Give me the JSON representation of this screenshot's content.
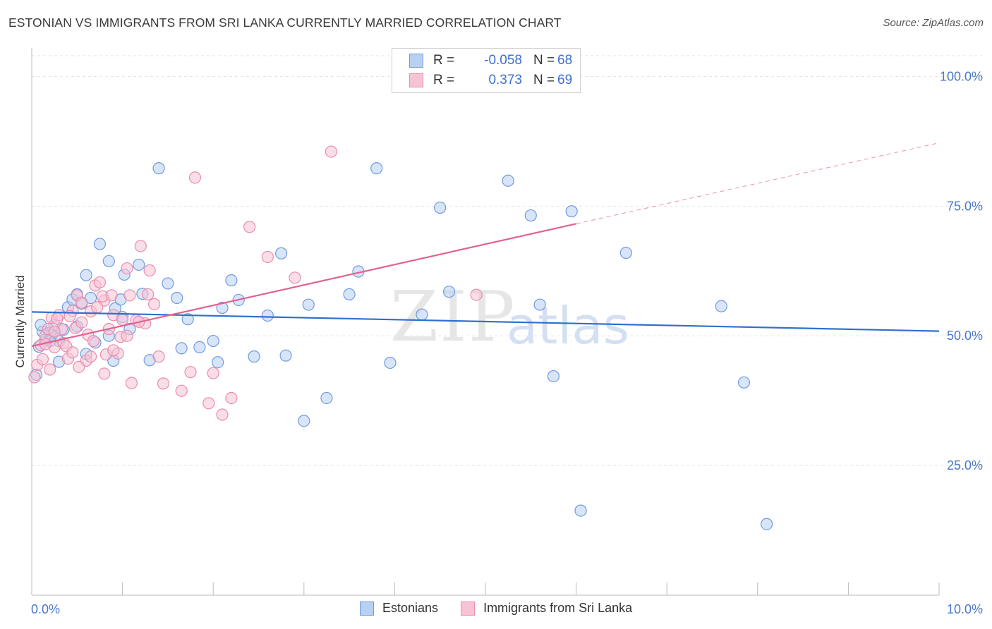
{
  "title": "ESTONIAN VS IMMIGRANTS FROM SRI LANKA CURRENTLY MARRIED CORRELATION CHART",
  "source": "Source: ZipAtlas.com",
  "watermark": {
    "zip": "ZIP",
    "atlas": "atlas"
  },
  "legend_top": [
    {
      "r_label": "R =",
      "r_value": "-0.058",
      "n_label": "N =",
      "n_value": "68"
    },
    {
      "r_label": "R =",
      "r_value": "0.373",
      "n_label": "N =",
      "n_value": "69"
    }
  ],
  "legend_bottom": [
    "Estonians",
    "Immigrants from Sri Lanka"
  ],
  "colors": {
    "blue_fill": "#b8d0f2",
    "blue_stroke": "#6f9be0",
    "blue_line": "#2f6fcf",
    "pink_fill": "#f6c3d4",
    "pink_stroke": "#ea8cac",
    "pink_line": "#e2628f",
    "grid": "#e3e3e3",
    "tick_text": "#4a77c8"
  },
  "chart_data": {
    "type": "scatter",
    "title": "ESTONIAN VS IMMIGRANTS FROM SRI LANKA CURRENTLY MARRIED CORRELATION CHART",
    "xlabel": "",
    "ylabel": "Currently Married",
    "xlim": [
      0,
      10
    ],
    "ylim": [
      0,
      104
    ],
    "x_tick_labels": [
      "0.0%",
      "10.0%"
    ],
    "y_ticks": [
      25,
      50,
      75,
      100
    ],
    "y_tick_labels": [
      "25.0%",
      "50.0%",
      "75.0%",
      "100.0%"
    ],
    "grid": true,
    "series": [
      {
        "name": "Estonians",
        "r": -0.058,
        "n": 68,
        "trend": {
          "x0": 0,
          "y0": 54.6,
          "x1": 10,
          "y1": 50.9
        },
        "points": [
          [
            0.05,
            42.5
          ],
          [
            0.08,
            47.9
          ],
          [
            0.12,
            50.8
          ],
          [
            0.15,
            49.3
          ],
          [
            0.2,
            50.6
          ],
          [
            0.22,
            50.1
          ],
          [
            0.25,
            52.1
          ],
          [
            0.3,
            49.0
          ],
          [
            0.35,
            51.2
          ],
          [
            0.4,
            55.5
          ],
          [
            0.45,
            57.0
          ],
          [
            0.5,
            51.8
          ],
          [
            0.55,
            56.2
          ],
          [
            0.6,
            61.7
          ],
          [
            0.65,
            57.3
          ],
          [
            0.7,
            48.7
          ],
          [
            0.75,
            67.7
          ],
          [
            0.85,
            64.4
          ],
          [
            0.92,
            55.3
          ],
          [
            0.98,
            57.0
          ],
          [
            1.02,
            61.8
          ],
          [
            1.08,
            51.3
          ],
          [
            1.18,
            63.7
          ],
          [
            1.22,
            58.1
          ],
          [
            1.5,
            60.1
          ],
          [
            1.6,
            57.3
          ],
          [
            1.65,
            47.6
          ],
          [
            1.72,
            53.2
          ],
          [
            1.85,
            47.8
          ],
          [
            2.0,
            49.0
          ],
          [
            2.05,
            44.9
          ],
          [
            2.1,
            55.4
          ],
          [
            2.2,
            60.7
          ],
          [
            2.28,
            56.9
          ],
          [
            2.45,
            46.0
          ],
          [
            2.6,
            53.9
          ],
          [
            2.75,
            65.9
          ],
          [
            2.8,
            46.2
          ],
          [
            3.0,
            33.6
          ],
          [
            3.05,
            56.0
          ],
          [
            3.25,
            38.0
          ],
          [
            3.5,
            58.0
          ],
          [
            3.6,
            62.4
          ],
          [
            3.8,
            82.3
          ],
          [
            3.95,
            44.8
          ],
          [
            4.3,
            54.1
          ],
          [
            4.5,
            74.7
          ],
          [
            4.6,
            58.5
          ],
          [
            5.25,
            79.9
          ],
          [
            5.5,
            73.2
          ],
          [
            5.6,
            56.0
          ],
          [
            5.75,
            42.2
          ],
          [
            5.95,
            74.0
          ],
          [
            6.05,
            16.3
          ],
          [
            6.55,
            66.0
          ],
          [
            7.6,
            55.7
          ],
          [
            7.85,
            41.0
          ],
          [
            8.1,
            13.7
          ],
          [
            0.5,
            58.0
          ],
          [
            0.2,
            49.0
          ],
          [
            1.4,
            82.3
          ],
          [
            0.9,
            45.2
          ],
          [
            0.6,
            46.5
          ],
          [
            1.3,
            45.3
          ],
          [
            1.0,
            53.6
          ],
          [
            0.3,
            45.0
          ],
          [
            0.1,
            52.1
          ],
          [
            0.85,
            50.0
          ]
        ]
      },
      {
        "name": "Immigrants from Sri Lanka",
        "r": 0.373,
        "n": 69,
        "trend": {
          "x0": 0,
          "y0": 48.0,
          "x1": 6.0,
          "y1": 71.6
        },
        "trend_dashed_to": {
          "x": 10,
          "y": 87.2
        },
        "points": [
          [
            0.03,
            42.0
          ],
          [
            0.06,
            44.4
          ],
          [
            0.1,
            48.2
          ],
          [
            0.15,
            50.0
          ],
          [
            0.18,
            51.3
          ],
          [
            0.22,
            53.5
          ],
          [
            0.25,
            47.8
          ],
          [
            0.3,
            54.0
          ],
          [
            0.35,
            48.6
          ],
          [
            0.4,
            45.6
          ],
          [
            0.45,
            54.8
          ],
          [
            0.5,
            57.8
          ],
          [
            0.55,
            56.4
          ],
          [
            0.6,
            45.2
          ],
          [
            0.65,
            54.7
          ],
          [
            0.7,
            59.7
          ],
          [
            0.75,
            60.3
          ],
          [
            0.8,
            56.8
          ],
          [
            0.85,
            51.3
          ],
          [
            0.9,
            54.0
          ],
          [
            0.95,
            46.6
          ],
          [
            1.0,
            53.1
          ],
          [
            1.05,
            63.0
          ],
          [
            1.1,
            40.9
          ],
          [
            1.15,
            53.0
          ],
          [
            1.2,
            67.3
          ],
          [
            1.25,
            52.4
          ],
          [
            1.3,
            62.6
          ],
          [
            1.35,
            56.1
          ],
          [
            1.45,
            40.8
          ],
          [
            1.65,
            39.4
          ],
          [
            1.75,
            43.0
          ],
          [
            1.95,
            37.0
          ],
          [
            2.2,
            38.0
          ],
          [
            2.4,
            71.0
          ],
          [
            2.6,
            65.2
          ],
          [
            2.9,
            61.2
          ],
          [
            3.3,
            85.5
          ],
          [
            4.9,
            57.9
          ],
          [
            1.8,
            80.5
          ],
          [
            0.12,
            45.5
          ],
          [
            0.2,
            43.5
          ],
          [
            0.28,
            53.3
          ],
          [
            0.33,
            51.3
          ],
          [
            0.38,
            48.0
          ],
          [
            0.48,
            51.5
          ],
          [
            0.55,
            52.6
          ],
          [
            0.72,
            55.5
          ],
          [
            0.78,
            57.6
          ],
          [
            0.88,
            57.8
          ],
          [
            0.98,
            49.8
          ],
          [
            1.08,
            57.8
          ],
          [
            1.18,
            52.7
          ],
          [
            0.62,
            50.2
          ],
          [
            0.68,
            49.0
          ],
          [
            1.28,
            58.0
          ],
          [
            0.42,
            53.8
          ],
          [
            0.52,
            44.0
          ],
          [
            0.82,
            46.4
          ],
          [
            1.05,
            50.0
          ],
          [
            0.15,
            48.4
          ],
          [
            0.25,
            50.8
          ],
          [
            0.45,
            46.8
          ],
          [
            0.65,
            46.0
          ],
          [
            0.8,
            42.7
          ],
          [
            0.9,
            47.2
          ],
          [
            2.0,
            42.8
          ],
          [
            2.1,
            34.8
          ],
          [
            1.4,
            46.0
          ]
        ]
      }
    ]
  }
}
